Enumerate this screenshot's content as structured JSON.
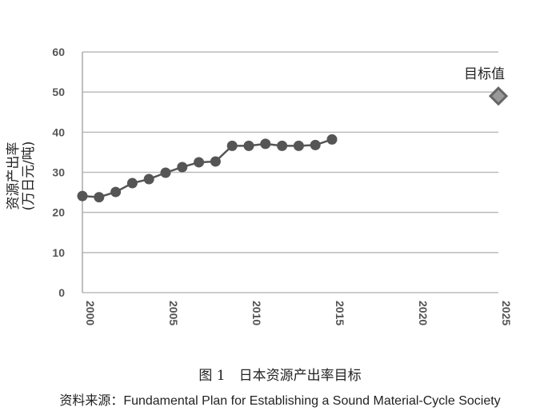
{
  "chart_data": {
    "type": "line",
    "title": "",
    "xlabel": "",
    "ylabel": [
      "资源产出率",
      "(万日元/吨)"
    ],
    "xlim": [
      2000,
      2025
    ],
    "ylim": [
      0,
      60
    ],
    "xticks": [
      "2000",
      "2005",
      "2010",
      "2015",
      "2020",
      "2025"
    ],
    "yticks": [
      "0",
      "10",
      "20",
      "30",
      "40",
      "50",
      "60"
    ],
    "grid": "horizontal",
    "series": [
      {
        "name": "资源产出率",
        "x": [
          2000,
          2001,
          2002,
          2003,
          2004,
          2005,
          2006,
          2007,
          2008,
          2009,
          2010,
          2011,
          2012,
          2013,
          2014,
          2015
        ],
        "values": [
          24.1,
          23.8,
          25.1,
          27.3,
          28.3,
          29.9,
          31.3,
          32.5,
          32.7,
          36.6,
          36.6,
          37.1,
          36.6,
          36.6,
          36.8,
          38.2
        ],
        "color": "#555555"
      }
    ],
    "target": {
      "label": "目标值",
      "x": 2025,
      "value": 49,
      "color": "#666666"
    }
  },
  "caption": "图 1　日本资源产出率目标",
  "source": "资料来源：Fundamental Plan for Establishing a Sound Material-Cycle Society"
}
